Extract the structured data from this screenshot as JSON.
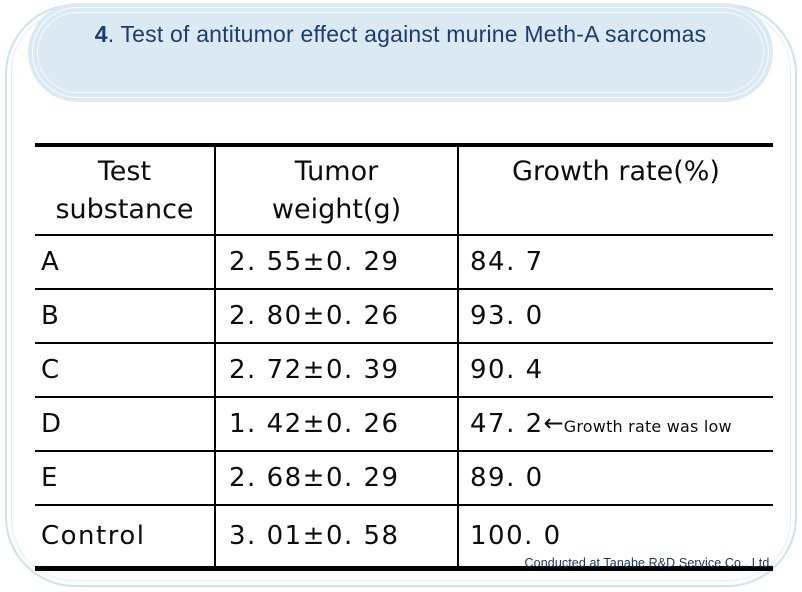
{
  "title": {
    "number": "4",
    "rest": ". Test of antitumor effect against murine Meth-A sarcomas"
  },
  "table": {
    "headers": [
      {
        "line1": "Test",
        "line2": "substance"
      },
      {
        "line1": "Tumor",
        "line2": "weight(g)"
      },
      {
        "line1": "Growth rate(%)",
        "line2": ""
      }
    ],
    "rows": [
      {
        "substance": "A",
        "weight": "2. 55±0. 29",
        "growth": "84. 7"
      },
      {
        "substance": "B",
        "weight": "2. 80±0. 26",
        "growth": "93. 0"
      },
      {
        "substance": "C",
        "weight": "2. 72±0. 39",
        "growth": "90. 4"
      },
      {
        "substance": "D",
        "weight": "1. 42±0. 26",
        "growth": "47. 2",
        "note_arrow": "←",
        "note_text": "Growth rate was low"
      },
      {
        "substance": "E",
        "weight": "2. 68±0. 29",
        "growth": "89. 0"
      },
      {
        "substance": "Control",
        "weight": "3. 01±0. 58",
        "growth": "100. 0"
      }
    ]
  },
  "footer": {
    "credit": "Conducted at Tanabe R&D Service Co., Ltd."
  },
  "colors": {
    "title_fill": "#dbeaf2",
    "title_text": "#1b3c6e",
    "frame_line": "#cbe3ef",
    "table_line": "#000000",
    "credit_text": "#16365c"
  }
}
